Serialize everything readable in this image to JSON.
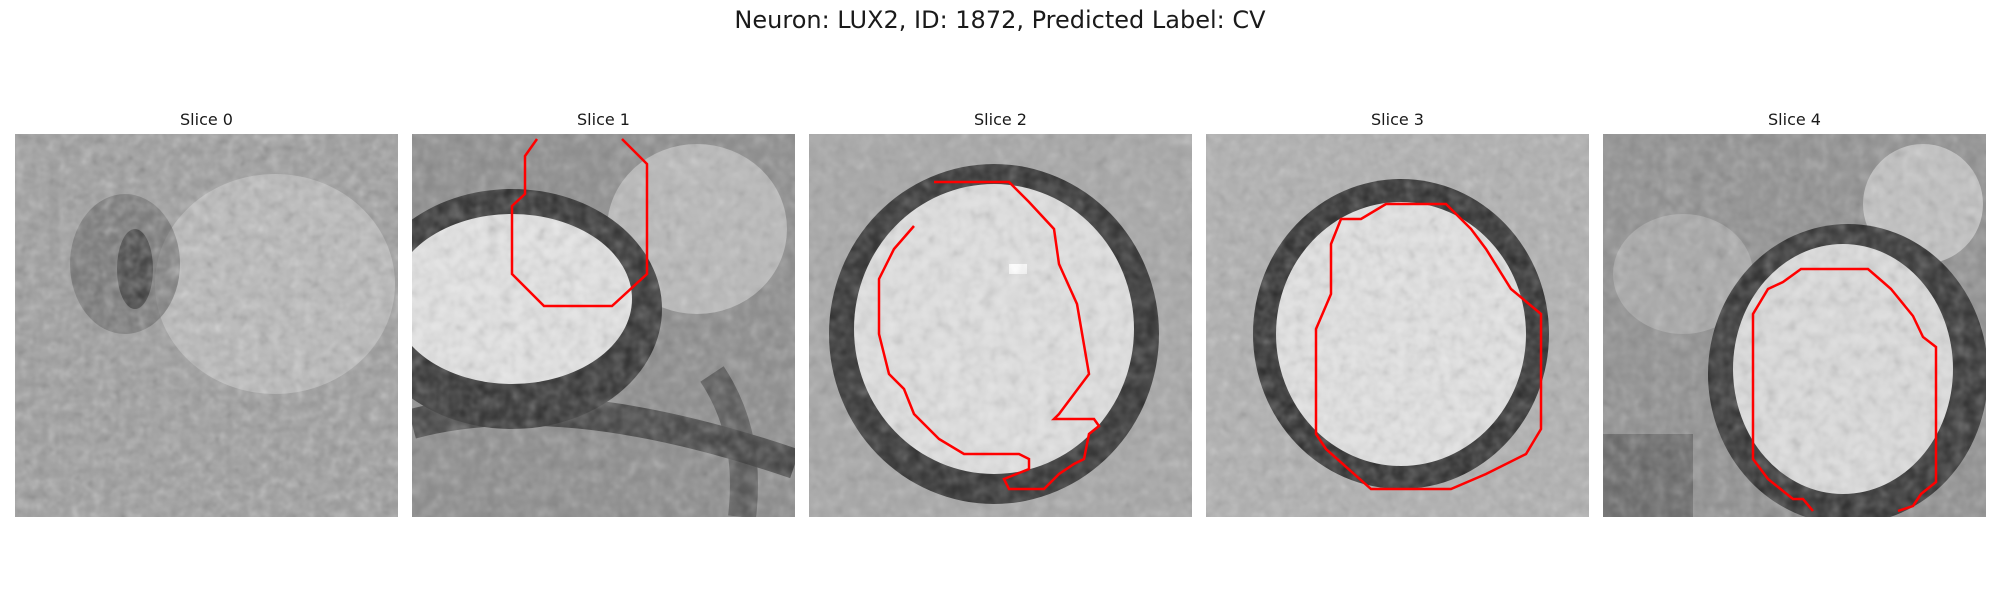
{
  "figure": {
    "title": "Neuron: LUX2, ID: 1872, Predicted Label: CV"
  },
  "panels": [
    {
      "title": "Slice 0",
      "has_contour": false
    },
    {
      "title": "Slice 1",
      "has_contour": true
    },
    {
      "title": "Slice 2",
      "has_contour": true
    },
    {
      "title": "Slice 3",
      "has_contour": true
    },
    {
      "title": "Slice 4",
      "has_contour": true
    }
  ],
  "colors": {
    "contour": "#ff0000",
    "image_palette": "grayscale"
  }
}
